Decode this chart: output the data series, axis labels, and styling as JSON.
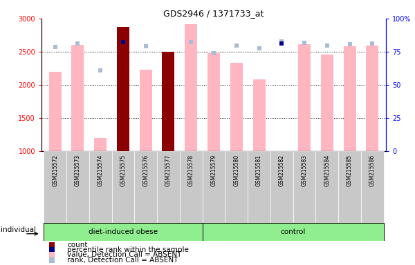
{
  "title": "GDS2946 / 1371733_at",
  "samples": [
    "GSM215572",
    "GSM215573",
    "GSM215574",
    "GSM215575",
    "GSM215576",
    "GSM215577",
    "GSM215578",
    "GSM215579",
    "GSM215580",
    "GSM215581",
    "GSM215582",
    "GSM215583",
    "GSM215584",
    "GSM215585",
    "GSM215586"
  ],
  "n_obese": 7,
  "n_control": 8,
  "count_values": [
    null,
    null,
    null,
    2870,
    null,
    2500,
    null,
    null,
    null,
    null,
    null,
    null,
    null,
    null,
    null
  ],
  "percentile_rank_values": [
    null,
    null,
    null,
    2640,
    null,
    null,
    null,
    null,
    null,
    null,
    2620,
    null,
    null,
    null,
    null
  ],
  "value_absent": [
    2200,
    2600,
    1200,
    null,
    2230,
    null,
    2920,
    2480,
    2330,
    2080,
    null,
    2610,
    2460,
    2580,
    2590
  ],
  "rank_absent": [
    2570,
    2620,
    2220,
    null,
    2580,
    null,
    2640,
    2480,
    2590,
    2550,
    2660,
    2630,
    2590,
    2610,
    2620
  ],
  "ylim_min": 1000,
  "ylim_max": 3000,
  "yticks_left": [
    1000,
    1500,
    2000,
    2500,
    3000
  ],
  "yticks_right": [
    0,
    25,
    50,
    75,
    100
  ],
  "color_count": "#8B0000",
  "color_percentile": "#00008B",
  "color_value_absent": "#FFB6C1",
  "color_rank_absent": "#AABBD4",
  "color_bg_gray": "#C8C8C8",
  "color_group_green": "#90EE90",
  "bar_width": 0.55,
  "title_fontsize": 9,
  "tick_fontsize": 7,
  "legend_fontsize": 7.5
}
